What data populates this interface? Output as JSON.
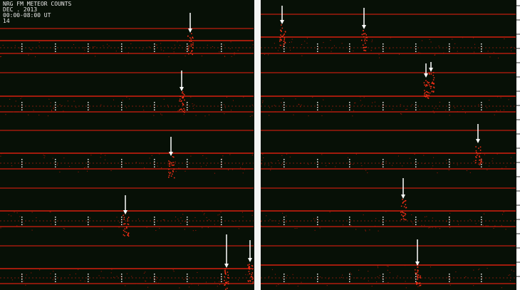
{
  "header": {
    "title": "NRG FM METEOR COUNTS",
    "date": "DEC . 2013",
    "time": "00:00-08:00 UT",
    "day": "14"
  }
}
